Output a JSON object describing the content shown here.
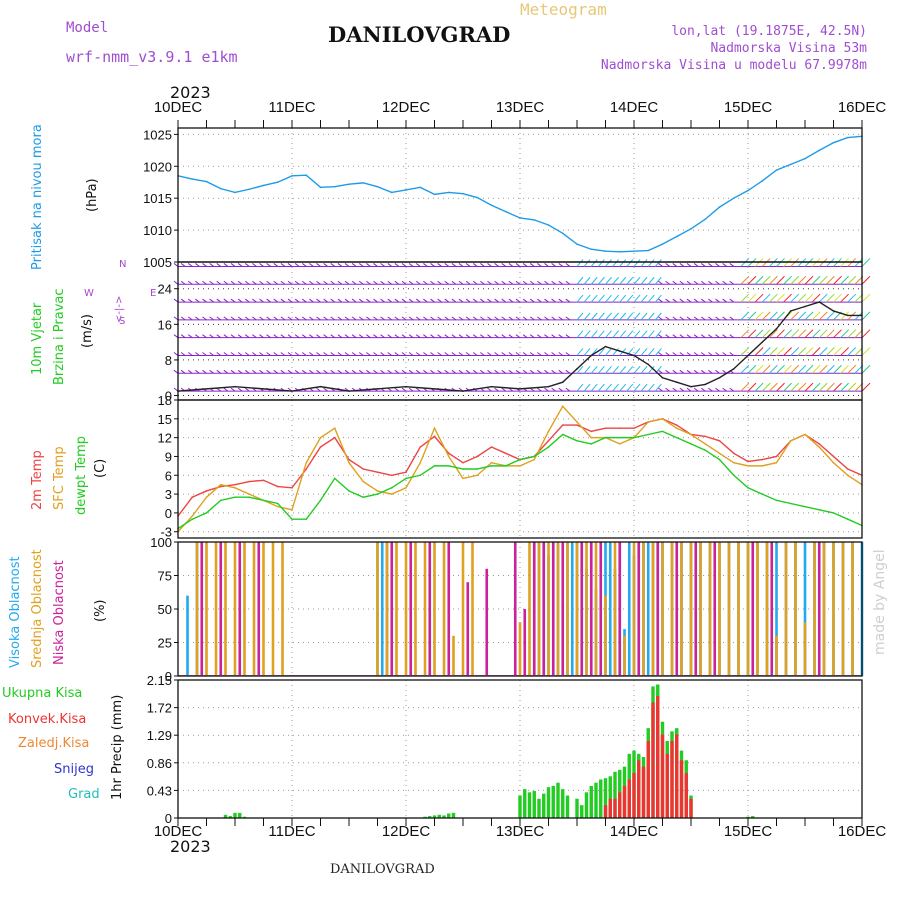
{
  "header": {
    "model_label": "Model",
    "model_value": "wrf-nmm_v3.9.1 e1km",
    "chart_type_label": "Meteogram",
    "station": "DANILOVGRAD",
    "coords": "lon,lat (19.1875E, 42.5N)",
    "elevation": "Nadmorska Visina 53m",
    "model_elevation": "Nadmorska Visina u modelu 67.9978m",
    "year_top": "2023",
    "year_bottom": "2023",
    "footer_station": "DANILOVGRAD",
    "watermark": "made by Angel"
  },
  "colors": {
    "pressure": "#1e9be8",
    "wind_label": "#22cc22",
    "direction": "#aa44cc",
    "temp2m": "#ee4444",
    "sfc": "#e0a020",
    "dewpt": "#22cc22",
    "high_cloud": "#22aaee",
    "mid_cloud": "#e0a020",
    "low_cloud": "#cc2299",
    "total_precip": "#22cc22",
    "conv_precip": "#ee3333",
    "frozen": "#ee8833",
    "snow": "#3333cc",
    "hail": "#22bbbb"
  },
  "x_axis": {
    "ticks": [
      "10DEC",
      "11DEC",
      "12DEC",
      "13DEC",
      "14DEC",
      "15DEC",
      "16DEC"
    ],
    "start": 0,
    "end": 144,
    "unit": "hours from 10DEC 00UTC"
  },
  "labels": {
    "pressure": [
      "Pritisak na nivou mora",
      "(hPa)"
    ],
    "wind": [
      "10m Vjetar",
      "Brzina i Pravac",
      "(m/s)"
    ],
    "compass": [
      "N",
      "W",
      "<-|->",
      "E",
      "S"
    ],
    "temp": [
      "2m Temp",
      "SFC Temp",
      "dewpt Temp",
      "(C)"
    ],
    "cloud": [
      "Visoka Oblacnost",
      "Srednja Oblacnost",
      "Niska Oblacnost",
      "(%)"
    ],
    "precip": [
      "Ukupna Kisa",
      "Konvek.Kisa",
      "Zaledj.Kisa",
      "Snijeg",
      "Grad",
      "1hr Precip (mm)"
    ]
  },
  "chart_data": [
    {
      "type": "line",
      "panel": "pressure",
      "ylabel": "(hPa)",
      "ylim": [
        1005,
        1026
      ],
      "yticks": [
        "1005",
        "1010",
        "1015",
        "1020",
        "1025"
      ],
      "grid": true,
      "x": [
        0,
        3,
        6,
        9,
        12,
        15,
        18,
        21,
        24,
        27,
        30,
        33,
        36,
        39,
        42,
        45,
        48,
        51,
        54,
        57,
        60,
        63,
        66,
        69,
        72,
        75,
        78,
        81,
        84,
        87,
        90,
        93,
        96,
        99,
        102,
        105,
        108,
        111,
        114,
        117,
        120,
        123,
        126,
        129,
        132,
        135,
        138,
        141,
        144
      ],
      "series": [
        {
          "name": "Pritisak na nivou mora",
          "values": [
            1018.5,
            1018,
            1017.6,
            1016.5,
            1015.9,
            1016.4,
            1017,
            1017.5,
            1018.5,
            1018.6,
            1016.7,
            1016.8,
            1017.2,
            1017.4,
            1016.8,
            1015.9,
            1016.3,
            1016.7,
            1015.6,
            1015.9,
            1015.7,
            1015.1,
            1013.9,
            1012.9,
            1011.9,
            1011.6,
            1010.8,
            1009.5,
            1007.8,
            1007,
            1006.7,
            1006.6,
            1006.7,
            1006.8,
            1007.8,
            1009,
            1010.2,
            1011.7,
            1013.6,
            1015,
            1016.2,
            1017.7,
            1019.4,
            1020.3,
            1021.2,
            1022.5,
            1023.7,
            1024.5,
            1024.7
          ]
        }
      ]
    },
    {
      "type": "line",
      "panel": "wind",
      "ylabel": "(m/s)",
      "ylim": [
        -1,
        30
      ],
      "yticks": [
        "0",
        "8",
        "16",
        "24"
      ],
      "grid": true,
      "x": [
        0,
        6,
        12,
        18,
        24,
        30,
        36,
        42,
        48,
        54,
        60,
        66,
        72,
        78,
        81,
        84,
        87,
        90,
        93,
        96,
        99,
        102,
        105,
        108,
        111,
        114,
        117,
        120,
        123,
        126,
        129,
        132,
        135,
        138,
        141,
        144
      ],
      "series": [
        {
          "name": "wind speed",
          "values": [
            1,
            1.5,
            2,
            1.5,
            1,
            2,
            1,
            1.5,
            2,
            1.5,
            1,
            2,
            1.5,
            2,
            3,
            6,
            9,
            11,
            10,
            9,
            7,
            4,
            3,
            2,
            2.5,
            4,
            6,
            9,
            12,
            15,
            19,
            20,
            21,
            19,
            18,
            18
          ]
        }
      ]
    },
    {
      "type": "line",
      "panel": "temperature",
      "ylabel": "(C)",
      "ylim": [
        -4,
        18
      ],
      "yticks": [
        "-3",
        "0",
        "3",
        "6",
        "9",
        "12",
        "15",
        "18"
      ],
      "grid": true,
      "x": [
        0,
        3,
        6,
        9,
        12,
        15,
        18,
        21,
        24,
        27,
        30,
        33,
        36,
        39,
        42,
        45,
        48,
        51,
        54,
        57,
        60,
        63,
        66,
        69,
        72,
        75,
        78,
        81,
        84,
        87,
        90,
        93,
        96,
        99,
        102,
        105,
        108,
        111,
        114,
        117,
        120,
        123,
        126,
        129,
        132,
        135,
        138,
        141,
        144
      ],
      "series": [
        {
          "name": "2m Temp",
          "values": [
            -0.5,
            2.5,
            3.5,
            4.2,
            4.5,
            5,
            5.2,
            4.2,
            4,
            7,
            10.5,
            12,
            8.5,
            7,
            6.5,
            6,
            6.5,
            10.5,
            12.2,
            9.5,
            8,
            9,
            10.5,
            9.5,
            8.5,
            9,
            11.5,
            14,
            14,
            13,
            13.5,
            13.5,
            13.5,
            14.5,
            15,
            14,
            12.5,
            12.2,
            11.5,
            9.5,
            8.2,
            8.5,
            9,
            11.5,
            12.5,
            11,
            9,
            7,
            6
          ]
        },
        {
          "name": "SFC Temp",
          "values": [
            -3,
            -0.5,
            2.5,
            4.5,
            4,
            3,
            2,
            1,
            0.5,
            8,
            12,
            13.5,
            8,
            5,
            3.5,
            3,
            4,
            8,
            13.5,
            9,
            5.5,
            6,
            8,
            7.5,
            7.5,
            8.5,
            13,
            17,
            14.5,
            12,
            12,
            11,
            12,
            14.5,
            15,
            13.5,
            12.5,
            11,
            9.5,
            8,
            7.5,
            7.5,
            8,
            11.5,
            12.5,
            10.5,
            8,
            6,
            4.5
          ]
        },
        {
          "name": "dewpt Temp",
          "values": [
            -2.5,
            -1,
            0,
            2,
            2.5,
            2.5,
            2,
            1.5,
            -1,
            -1,
            2,
            5.5,
            3.5,
            2.5,
            3,
            4,
            5.5,
            6,
            7.5,
            7.5,
            7,
            7,
            7.5,
            7.5,
            8.5,
            9,
            10.5,
            12.5,
            11.5,
            11,
            12,
            12,
            12,
            12.5,
            13,
            12,
            11,
            10,
            8.5,
            6,
            4,
            3,
            2,
            1.5,
            1,
            0.5,
            0,
            -1,
            -2
          ]
        }
      ]
    },
    {
      "type": "bar",
      "panel": "cloud",
      "ylabel": "(%)",
      "ylim": [
        0,
        100
      ],
      "yticks": [
        "0",
        "25",
        "50",
        "75",
        "100"
      ],
      "grid": true,
      "series": [
        {
          "name": "Visoka Oblacnost",
          "x": [
            2,
            4,
            42,
            43,
            44,
            75,
            76,
            77,
            78,
            79,
            80,
            81,
            82,
            83,
            84,
            85,
            86,
            87,
            88,
            90,
            91,
            92,
            93,
            94,
            95,
            96,
            97,
            98,
            99,
            100,
            101,
            102,
            104,
            106,
            108,
            110,
            112,
            114,
            116,
            118,
            120,
            122,
            124,
            126,
            128,
            130,
            132,
            134,
            136,
            138,
            140,
            142,
            144
          ],
          "values": [
            60,
            100,
            100,
            100,
            100,
            100,
            100,
            100,
            90,
            100,
            100,
            55,
            100,
            100,
            100,
            100,
            80,
            100,
            65,
            100,
            100,
            80,
            100,
            35,
            100,
            90,
            100,
            100,
            100,
            100,
            100,
            100,
            100,
            100,
            100,
            100,
            100,
            100,
            100,
            100,
            100,
            100,
            100,
            100,
            100,
            100,
            100,
            100,
            100,
            100,
            100,
            100,
            100
          ]
        },
        {
          "name": "Srednja Oblacnost",
          "x": [
            4,
            6,
            8,
            10,
            12,
            14,
            16,
            18,
            20,
            22,
            42,
            44,
            46,
            48,
            50,
            52,
            54,
            56,
            58,
            60,
            62,
            72,
            74,
            76,
            78,
            80,
            82,
            84,
            86,
            88,
            90,
            92,
            94,
            96,
            98,
            100,
            102,
            104,
            106,
            108,
            110,
            112,
            114,
            116,
            118,
            120,
            122,
            124,
            126,
            128,
            130,
            132,
            134,
            136,
            138,
            140,
            142
          ],
          "values": [
            100,
            100,
            100,
            100,
            100,
            100,
            100,
            100,
            100,
            100,
            100,
            100,
            100,
            100,
            100,
            100,
            100,
            100,
            30,
            100,
            100,
            40,
            100,
            100,
            100,
            100,
            100,
            100,
            100,
            100,
            60,
            100,
            30,
            100,
            100,
            100,
            100,
            100,
            100,
            100,
            100,
            100,
            100,
            100,
            100,
            100,
            100,
            100,
            30,
            100,
            100,
            40,
            100,
            100,
            100,
            100,
            100
          ]
        },
        {
          "name": "Niska Oblacnost",
          "x": [
            5,
            9,
            13,
            17,
            45,
            49,
            53,
            57,
            61,
            65,
            71,
            73,
            75,
            77,
            79,
            81,
            85,
            87,
            89,
            93,
            97,
            101,
            105,
            109,
            113,
            121,
            125,
            135
          ],
          "values": [
            100,
            100,
            100,
            100,
            100,
            100,
            100,
            100,
            70,
            80,
            100,
            50,
            100,
            100,
            100,
            100,
            100,
            100,
            100,
            100,
            100,
            100,
            100,
            100,
            100,
            100,
            100,
            100
          ]
        }
      ]
    },
    {
      "type": "bar",
      "panel": "precipitation",
      "ylabel": "1hr Precip (mm)",
      "ylim": [
        0,
        2.15
      ],
      "yticks": [
        "0",
        "0.43",
        "0.86",
        "1.29",
        "1.72",
        "2.15"
      ],
      "grid": true,
      "series": [
        {
          "name": "Ukupna Kisa",
          "x": [
            10,
            11,
            12,
            13,
            14,
            52,
            53,
            54,
            55,
            56,
            57,
            58,
            72,
            73,
            74,
            75,
            76,
            77,
            78,
            79,
            80,
            81,
            82,
            84,
            85,
            86,
            87,
            88,
            89,
            90,
            91,
            92,
            93,
            94,
            95,
            96,
            97,
            98,
            99,
            100,
            101,
            102,
            103,
            104,
            105,
            106,
            107,
            108,
            120,
            121
          ],
          "values": [
            0.05,
            0.03,
            0.08,
            0.08,
            0.02,
            0.02,
            0.03,
            0.04,
            0.05,
            0.04,
            0.07,
            0.08,
            0.35,
            0.45,
            0.4,
            0.42,
            0.3,
            0.38,
            0.48,
            0.5,
            0.55,
            0.45,
            0.35,
            0.3,
            0.2,
            0.4,
            0.5,
            0.55,
            0.6,
            0.62,
            0.65,
            0.72,
            0.75,
            0.8,
            1.0,
            1.05,
            1.0,
            0.95,
            1.4,
            2.05,
            2.08,
            1.5,
            1.2,
            1.35,
            1.4,
            1.05,
            0.9,
            0.35,
            0.02,
            0.03
          ]
        },
        {
          "name": "Konvek.Kisa",
          "x": [
            90,
            91,
            92,
            93,
            94,
            95,
            96,
            97,
            98,
            99,
            100,
            101,
            102,
            103,
            104,
            105,
            106,
            107,
            108
          ],
          "values": [
            0.2,
            0.3,
            0.3,
            0.4,
            0.5,
            0.6,
            0.7,
            0.9,
            0.8,
            1.2,
            1.8,
            1.9,
            1.3,
            1.0,
            1.2,
            1.3,
            0.9,
            0.7,
            0.3
          ]
        }
      ]
    }
  ]
}
